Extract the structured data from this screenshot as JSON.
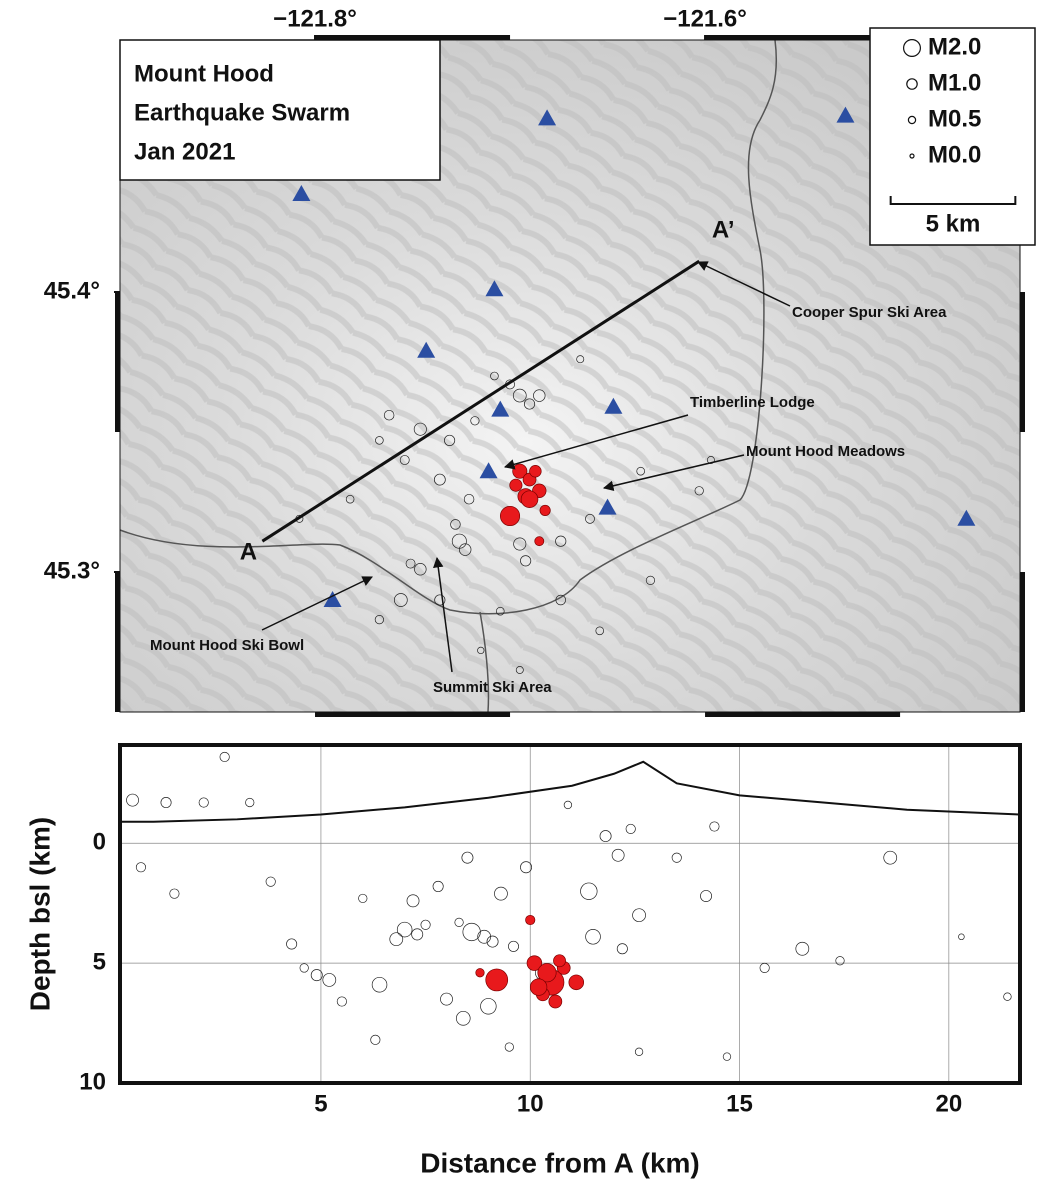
{
  "chart_data": [
    {
      "type": "map",
      "title_lines": [
        "Mount Hood",
        "Earthquake Swarm",
        "Jan 2021"
      ],
      "xlim": [
        -121.9,
        -121.4385
      ],
      "ylim": [
        45.25,
        45.49
      ],
      "xticks": [
        {
          "value": -121.8,
          "label": "−121.8°"
        },
        {
          "value": -121.6,
          "label": "−121.6°"
        }
      ],
      "yticks": [
        {
          "value": 45.4,
          "label": "45.4°"
        },
        {
          "value": 45.3,
          "label": "45.3°"
        }
      ],
      "legend": [
        {
          "value": 2.0,
          "label": "M2.0"
        },
        {
          "value": 1.0,
          "label": "M1.0"
        },
        {
          "value": 0.5,
          "label": "M0.5"
        },
        {
          "value": 0.0,
          "label": "M0.0"
        }
      ],
      "scale_bar": {
        "length_km": 5,
        "label": "5 km"
      },
      "stations": {
        "color": "#2b4ea2",
        "lon": [
          -121.807,
          -121.681,
          -121.528,
          -121.708,
          -121.743,
          -121.705,
          -121.647,
          -121.711,
          -121.65,
          -121.466,
          -121.791
        ],
        "lat": [
          45.435,
          45.462,
          45.463,
          45.401,
          45.379,
          45.358,
          45.359,
          45.336,
          45.323,
          45.319,
          45.29
        ]
      },
      "profile": {
        "labels": [
          "A",
          "A’"
        ],
        "lon": [
          -121.827,
          -121.603
        ],
        "lat": [
          45.311,
          45.411
        ]
      },
      "annotations": [
        "Cooper Spur Ski Area",
        "Timberline Lodge",
        "Mount Hood Meadows",
        "Mount Hood Ski Bowl",
        "Summit Ski Area"
      ],
      "series": [
        {
          "color": "none",
          "lon": [
            -121.695,
            -121.69,
            -121.7,
            -121.708,
            -121.685,
            -121.718,
            -121.731,
            -121.746,
            -121.762,
            -121.767,
            -121.754,
            -121.736,
            -121.726,
            -121.723,
            -121.728,
            -121.695,
            -121.692,
            -121.746,
            -121.751,
            -121.756,
            -121.767,
            -121.705,
            -121.674,
            -121.674,
            -121.659,
            -121.603,
            -121.597,
            -121.633,
            -121.664,
            -121.721,
            -121.782,
            -121.808,
            -121.715,
            -121.695,
            -121.654,
            -121.628,
            -121.736
          ],
          "lat": [
            45.363,
            45.36,
            45.367,
            45.37,
            45.363,
            45.354,
            45.347,
            45.351,
            45.356,
            45.347,
            45.34,
            45.333,
            45.311,
            45.308,
            45.317,
            45.31,
            45.304,
            45.301,
            45.303,
            45.29,
            45.283,
            45.286,
            45.29,
            45.311,
            45.319,
            45.329,
            45.34,
            45.336,
            45.376,
            45.326,
            45.326,
            45.319,
            45.272,
            45.265,
            45.279,
            45.297,
            45.29
          ],
          "mag": [
            1.4,
            1.0,
            0.8,
            0.6,
            1.2,
            0.7,
            1.0,
            1.3,
            0.9,
            0.6,
            0.8,
            1.1,
            1.6,
            1.2,
            0.9,
            1.3,
            1.0,
            1.2,
            0.8,
            1.4,
            0.7,
            0.6,
            0.9,
            1.0,
            0.8,
            0.7,
            0.5,
            0.6,
            0.5,
            0.9,
            0.6,
            0.5,
            0.4,
            0.5,
            0.6,
            0.7,
            1.0
          ]
        },
        {
          "color": "#e8191c",
          "lon": [
            -121.695,
            -121.69,
            -121.7,
            -121.685,
            -121.687,
            -121.692,
            -121.682,
            -121.685,
            -121.697,
            -121.69
          ],
          "lat": [
            45.336,
            45.333,
            45.32,
            45.329,
            45.336,
            45.327,
            45.322,
            45.311,
            45.331,
            45.326
          ],
          "mag": [
            1.6,
            1.4,
            2.4,
            1.5,
            1.2,
            1.8,
            1.0,
            0.8,
            1.3,
            2.0
          ]
        }
      ]
    },
    {
      "type": "scatter",
      "xlabel": "Distance from A (km)",
      "ylabel": "Depth bsl (km)",
      "xlim": [
        0.2,
        21.7
      ],
      "ylim": [
        10,
        -4.1
      ],
      "xticks": [
        5,
        10,
        15,
        20
      ],
      "yticks": [
        0,
        5,
        10
      ],
      "grid": true,
      "surface": {
        "x": [
          0.2,
          1.0,
          3.0,
          5.0,
          7.0,
          9.0,
          11.0,
          12.0,
          12.7,
          13.5,
          15.0,
          17.0,
          19.0,
          21.7
        ],
        "y": [
          -0.9,
          -0.9,
          -1.0,
          -1.2,
          -1.5,
          -1.9,
          -2.4,
          -2.9,
          -3.4,
          -2.5,
          -2.0,
          -1.7,
          -1.4,
          -1.2
        ]
      },
      "series": [
        {
          "color": "none",
          "x": [
            7.0,
            7.3,
            6.8,
            7.5,
            8.6,
            8.9,
            9.1,
            8.3,
            9.3,
            9.6,
            4.9,
            5.2,
            4.6,
            5.5,
            6.4,
            6.0,
            7.8,
            8.0,
            8.4,
            9.9,
            11.4,
            12.1,
            12.4,
            11.8,
            12.6,
            12.2,
            11.5,
            13.5,
            14.2,
            16.5,
            18.6,
            17.4,
            15.6,
            21.4,
            20.3,
            0.7,
            1.5,
            2.7,
            0.5,
            1.3,
            2.2,
            3.3,
            4.3,
            3.8,
            6.3,
            9.5,
            12.6,
            14.7,
            10.9,
            14.4,
            7.2,
            8.5,
            10.3,
            9.0
          ],
          "y": [
            3.6,
            3.8,
            4.0,
            3.4,
            3.7,
            3.9,
            4.1,
            3.3,
            2.1,
            4.3,
            5.5,
            5.7,
            5.2,
            6.6,
            5.9,
            2.3,
            1.8,
            6.5,
            7.3,
            1.0,
            2.0,
            0.5,
            -0.6,
            -0.3,
            3.0,
            4.4,
            3.9,
            0.6,
            2.2,
            4.4,
            0.6,
            4.9,
            5.2,
            6.4,
            3.9,
            1.0,
            2.1,
            -3.6,
            -1.8,
            -1.7,
            -1.7,
            -1.7,
            4.2,
            1.6,
            8.2,
            8.5,
            8.7,
            8.9,
            -1.6,
            -0.7,
            2.4,
            0.6,
            5.4,
            6.8
          ],
          "mag": [
            1.2,
            0.8,
            1.0,
            0.6,
            1.5,
            1.0,
            0.8,
            0.5,
            1.0,
            0.7,
            0.8,
            1.0,
            0.5,
            0.6,
            1.2,
            0.5,
            0.7,
            0.9,
            1.1,
            0.8,
            1.4,
            0.9,
            0.6,
            0.8,
            1.0,
            0.7,
            1.2,
            0.6,
            0.8,
            1.0,
            1.0,
            0.5,
            0.6,
            0.4,
            0.2,
            0.6,
            0.6,
            0.6,
            0.9,
            0.7,
            0.6,
            0.5,
            0.7,
            0.6,
            0.6,
            0.5,
            0.4,
            0.4,
            0.4,
            0.6,
            0.9,
            0.8,
            1.2,
            1.3
          ]
        },
        {
          "color": "#e8191c",
          "x": [
            9.2,
            10.5,
            10.1,
            10.4,
            10.8,
            11.1,
            10.3,
            10.0,
            10.7,
            8.8,
            10.6,
            10.2
          ],
          "y": [
            5.7,
            5.8,
            5.0,
            5.4,
            5.2,
            5.8,
            6.3,
            3.2,
            4.9,
            5.4,
            6.6,
            6.0
          ],
          "mag": [
            2.0,
            2.4,
            1.2,
            1.6,
            1.0,
            1.2,
            1.0,
            0.6,
            0.9,
            0.5,
            1.0,
            1.4
          ]
        }
      ]
    }
  ]
}
